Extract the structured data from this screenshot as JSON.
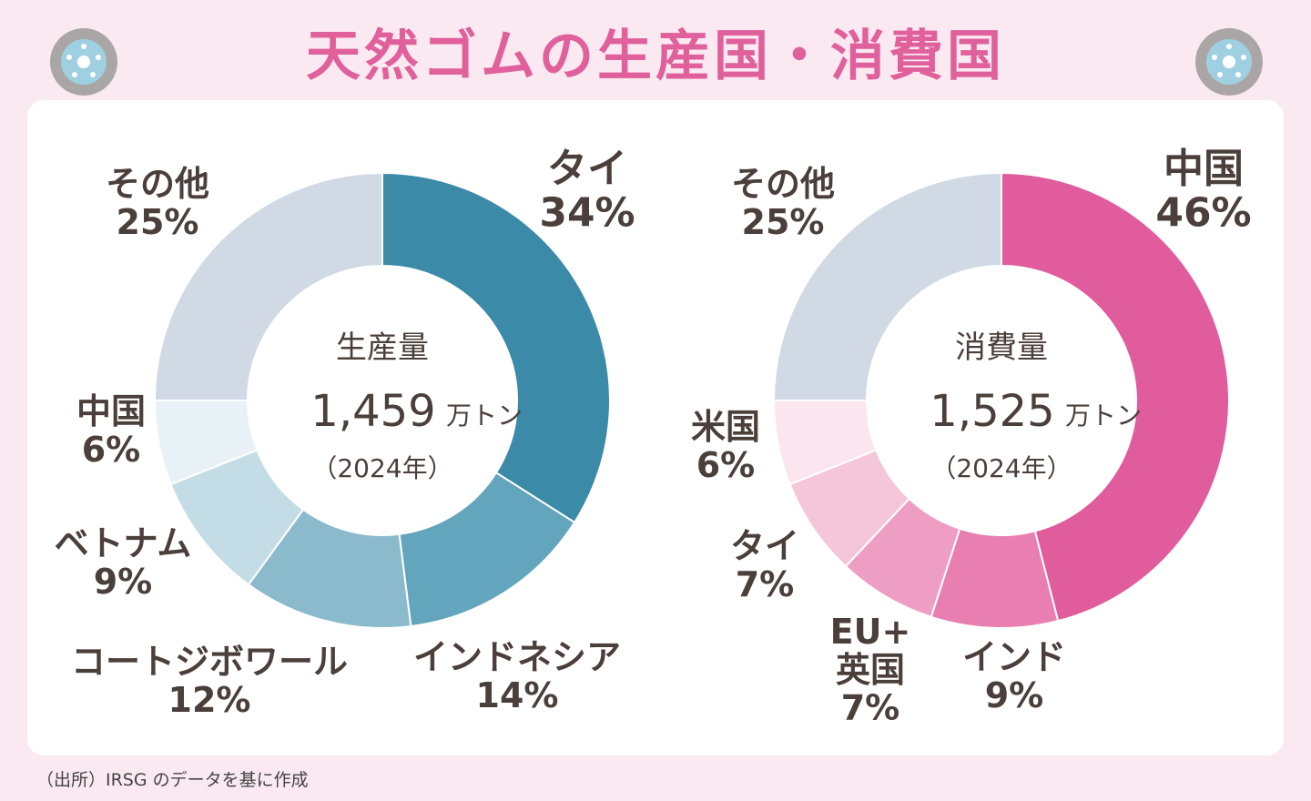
{
  "title": "天然ゴムの生産国・消費国",
  "source": "（出所）IRSG のデータを基に作成",
  "icons": {
    "left": "tire-icon",
    "right": "tire-icon"
  },
  "colors": {
    "title": "#e0609c",
    "label": "#4a3f3a",
    "background": "#fbe9f1"
  },
  "chart_data": [
    {
      "type": "pie",
      "variant": "donut",
      "name": "production",
      "center_title": "生産量",
      "center_value": "1,459",
      "center_unit": "万トン",
      "center_year": "（2024年）",
      "slices": [
        {
          "label": "タイ",
          "value": 34,
          "value_label": "34%",
          "color": "#3a8aa8"
        },
        {
          "label": "インドネシア",
          "value": 14,
          "value_label": "14%",
          "color": "#62a5bd"
        },
        {
          "label": "コートジボワール",
          "value": 12,
          "value_label": "12%",
          "color": "#8bbacc"
        },
        {
          "label": "ベトナム",
          "value": 9,
          "value_label": "9%",
          "color": "#c3dce5"
        },
        {
          "label": "中国",
          "value": 6,
          "value_label": "6%",
          "color": "#e8f1f5"
        },
        {
          "label": "その他",
          "value": 25,
          "value_label": "25%",
          "color": "#d0d9e4"
        }
      ]
    },
    {
      "type": "pie",
      "variant": "donut",
      "name": "consumption",
      "center_title": "消費量",
      "center_value": "1,525",
      "center_unit": "万トン",
      "center_year": "（2024年）",
      "slices": [
        {
          "label": "中国",
          "value": 46,
          "value_label": "46%",
          "color": "#e05c9c"
        },
        {
          "label": "インド",
          "value": 9,
          "value_label": "9%",
          "color": "#e87fb0"
        },
        {
          "label": "EU+\n英国",
          "value": 7,
          "value_label": "7%",
          "color": "#ee9ec3"
        },
        {
          "label": "タイ",
          "value": 7,
          "value_label": "7%",
          "color": "#f5c6da"
        },
        {
          "label": "米国",
          "value": 6,
          "value_label": "6%",
          "color": "#fbe5ef"
        },
        {
          "label": "その他",
          "value": 25,
          "value_label": "25%",
          "color": "#d0d9e4"
        }
      ]
    }
  ]
}
